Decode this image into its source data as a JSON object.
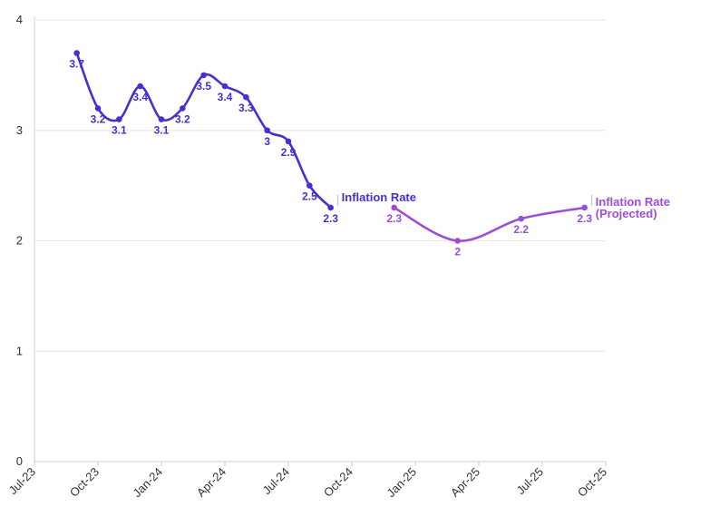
{
  "chart_data": {
    "type": "line",
    "title": "",
    "xlabel": "",
    "ylabel": "",
    "ylim": [
      0,
      4
    ],
    "yticks": [
      "0",
      "1",
      "2",
      "3",
      "4"
    ],
    "x_ticks": [
      "Jul-23",
      "Oct-23",
      "Jan-24",
      "Apr-24",
      "Jul-24",
      "Oct-24",
      "Jan-25",
      "Apr-25",
      "Jul-25",
      "Oct-25"
    ],
    "grid": true,
    "series": [
      {
        "name": "Inflation Rate",
        "color": "#4a2fd0",
        "points": [
          {
            "x": "2023-09",
            "y": 3.7
          },
          {
            "x": "2023-10",
            "y": 3.2
          },
          {
            "x": "2023-11",
            "y": 3.1
          },
          {
            "x": "2023-12",
            "y": 3.4
          },
          {
            "x": "2024-01",
            "y": 3.1
          },
          {
            "x": "2024-02",
            "y": 3.2
          },
          {
            "x": "2024-03",
            "y": 3.5
          },
          {
            "x": "2024-04",
            "y": 3.4
          },
          {
            "x": "2024-05",
            "y": 3.3
          },
          {
            "x": "2024-06",
            "y": 3
          },
          {
            "x": "2024-07",
            "y": 2.9
          },
          {
            "x": "2024-08",
            "y": 2.5
          },
          {
            "x": "2024-09",
            "y": 2.3
          }
        ]
      },
      {
        "name": "Inflation Rate (Projected)",
        "name_lines": [
          "Inflation Rate",
          "(Projected)"
        ],
        "color": "#9b4fd6",
        "points": [
          {
            "x": "2024-12",
            "y": 2.3
          },
          {
            "x": "2025-03",
            "y": 2
          },
          {
            "x": "2025-06",
            "y": 2.2
          },
          {
            "x": "2025-09",
            "y": 2.3
          }
        ]
      }
    ]
  }
}
